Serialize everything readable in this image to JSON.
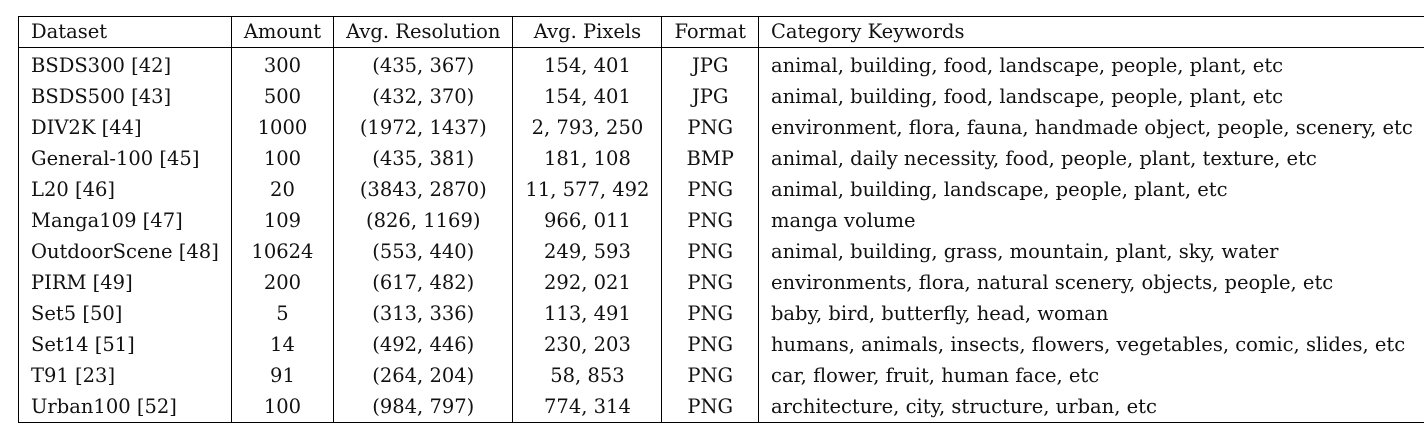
{
  "table": {
    "headers": [
      "Dataset",
      "Amount",
      "Avg. Resolution",
      "Avg. Pixels",
      "Format",
      "Category Keywords"
    ],
    "rows": [
      {
        "dataset": "BSDS300 [42]",
        "amount": "300",
        "resolution": "(435, 367)",
        "pixels": "154, 401",
        "format": "JPG",
        "keywords": "animal, building, food, landscape, people, plant, etc"
      },
      {
        "dataset": "BSDS500 [43]",
        "amount": "500",
        "resolution": "(432, 370)",
        "pixels": "154, 401",
        "format": "JPG",
        "keywords": "animal, building, food, landscape, people, plant, etc"
      },
      {
        "dataset": "DIV2K [44]",
        "amount": "1000",
        "resolution": "(1972, 1437)",
        "pixels": "2, 793, 250",
        "format": "PNG",
        "keywords": "environment, flora, fauna, handmade object, people, scenery, etc"
      },
      {
        "dataset": "General-100 [45]",
        "amount": "100",
        "resolution": "(435, 381)",
        "pixels": "181, 108",
        "format": "BMP",
        "keywords": "animal, daily necessity, food, people, plant, texture, etc"
      },
      {
        "dataset": "L20 [46]",
        "amount": "20",
        "resolution": "(3843, 2870)",
        "pixels": "11, 577, 492",
        "format": "PNG",
        "keywords": "animal, building, landscape, people, plant, etc"
      },
      {
        "dataset": "Manga109 [47]",
        "amount": "109",
        "resolution": "(826, 1169)",
        "pixels": "966, 011",
        "format": "PNG",
        "keywords": "manga volume"
      },
      {
        "dataset": "OutdoorScene [48]",
        "amount": "10624",
        "resolution": "(553, 440)",
        "pixels": "249, 593",
        "format": "PNG",
        "keywords": "animal, building, grass, mountain, plant, sky, water"
      },
      {
        "dataset": "PIRM [49]",
        "amount": "200",
        "resolution": "(617, 482)",
        "pixels": "292, 021",
        "format": "PNG",
        "keywords": "environments, flora, natural scenery, objects, people, etc"
      },
      {
        "dataset": "Set5 [50]",
        "amount": "5",
        "resolution": "(313, 336)",
        "pixels": "113, 491",
        "format": "PNG",
        "keywords": "baby, bird, butterfly, head, woman"
      },
      {
        "dataset": "Set14 [51]",
        "amount": "14",
        "resolution": "(492, 446)",
        "pixels": "230, 203",
        "format": "PNG",
        "keywords": "humans, animals, insects, flowers, vegetables, comic, slides, etc"
      },
      {
        "dataset": "T91 [23]",
        "amount": "91",
        "resolution": "(264, 204)",
        "pixels": "58, 853",
        "format": "PNG",
        "keywords": "car, flower, fruit, human face, etc"
      },
      {
        "dataset": "Urban100 [52]",
        "amount": "100",
        "resolution": "(984, 797)",
        "pixels": "774, 314",
        "format": "PNG",
        "keywords": "architecture, city, structure, urban, etc"
      }
    ]
  }
}
